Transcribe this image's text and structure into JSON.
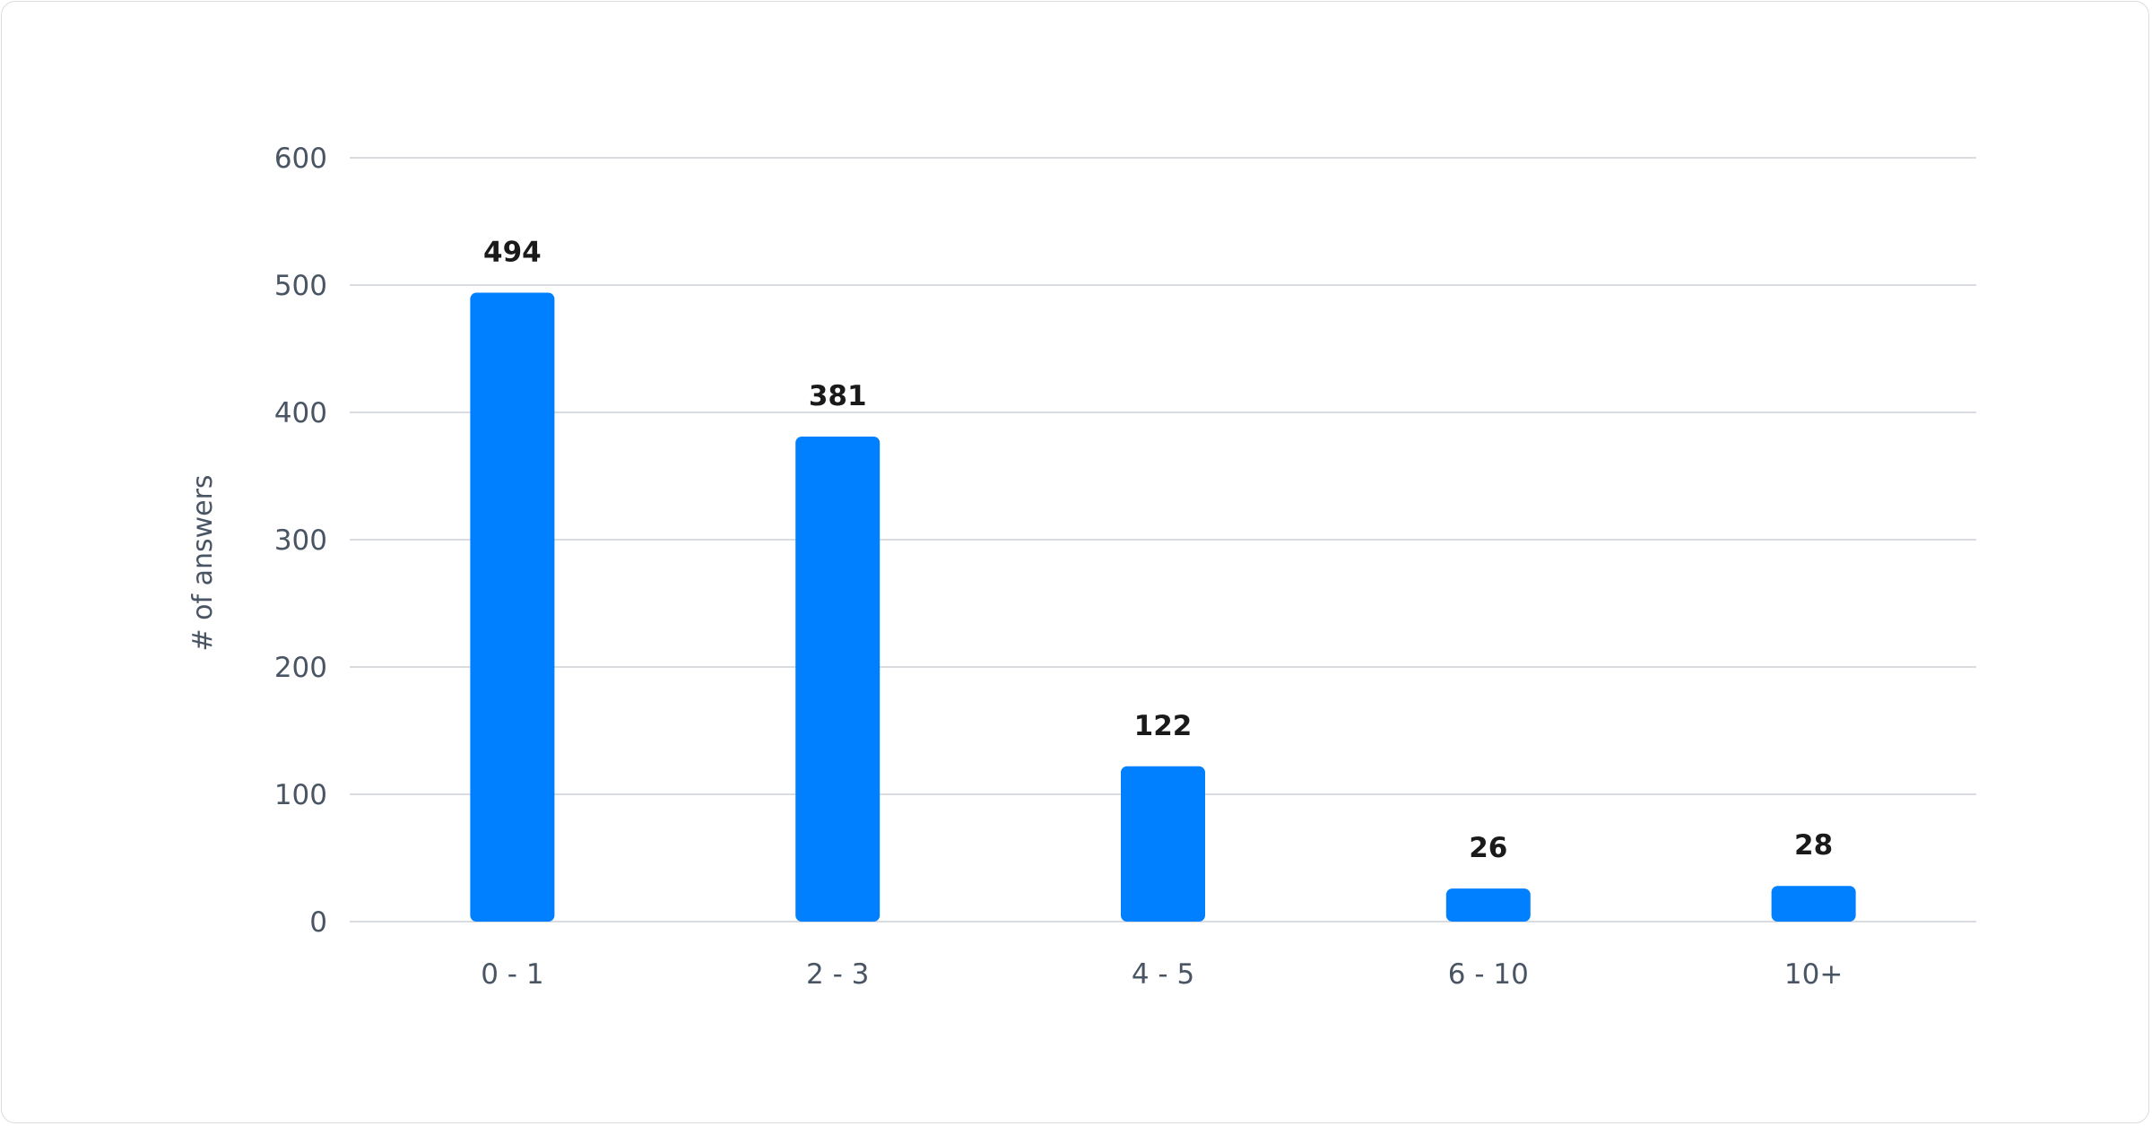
{
  "chart_data": {
    "type": "bar",
    "categories": [
      "0 - 1",
      "2 - 3",
      "4 - 5",
      "6 - 10",
      "10+"
    ],
    "values": [
      494,
      381,
      122,
      26,
      28
    ],
    "xlabel": "",
    "ylabel": "# of answers",
    "ylim": [
      0,
      600
    ],
    "yticks": [
      0,
      100,
      200,
      300,
      400,
      500,
      600
    ],
    "grid": true,
    "data_labels": true,
    "bar_color": "#007fff",
    "grid_color": "#d9dce1"
  }
}
